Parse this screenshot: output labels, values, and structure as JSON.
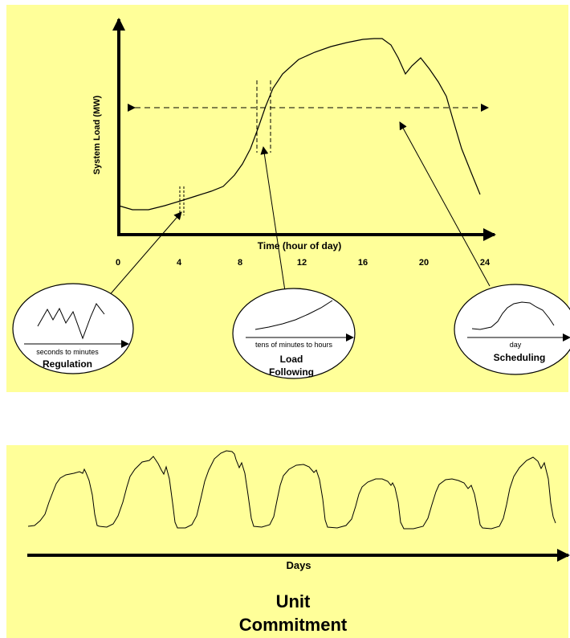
{
  "top": {
    "y_axis_label": "System Load (MW)",
    "x_axis_label": "Time (hour of day)",
    "ticks": [
      "0",
      "4",
      "8",
      "12",
      "16",
      "20",
      "24"
    ]
  },
  "insets": {
    "regulation": {
      "axis_label": "seconds to minutes",
      "title": "Regulation"
    },
    "load_following": {
      "axis_label": "tens of minutes to hours",
      "title_line1": "Load",
      "title_line2": "Following"
    },
    "scheduling": {
      "axis_label": "day",
      "title": "Scheduling"
    }
  },
  "bottom": {
    "axis_label": "Days",
    "title_line1": "Unit",
    "title_line2": "Commitment"
  }
}
